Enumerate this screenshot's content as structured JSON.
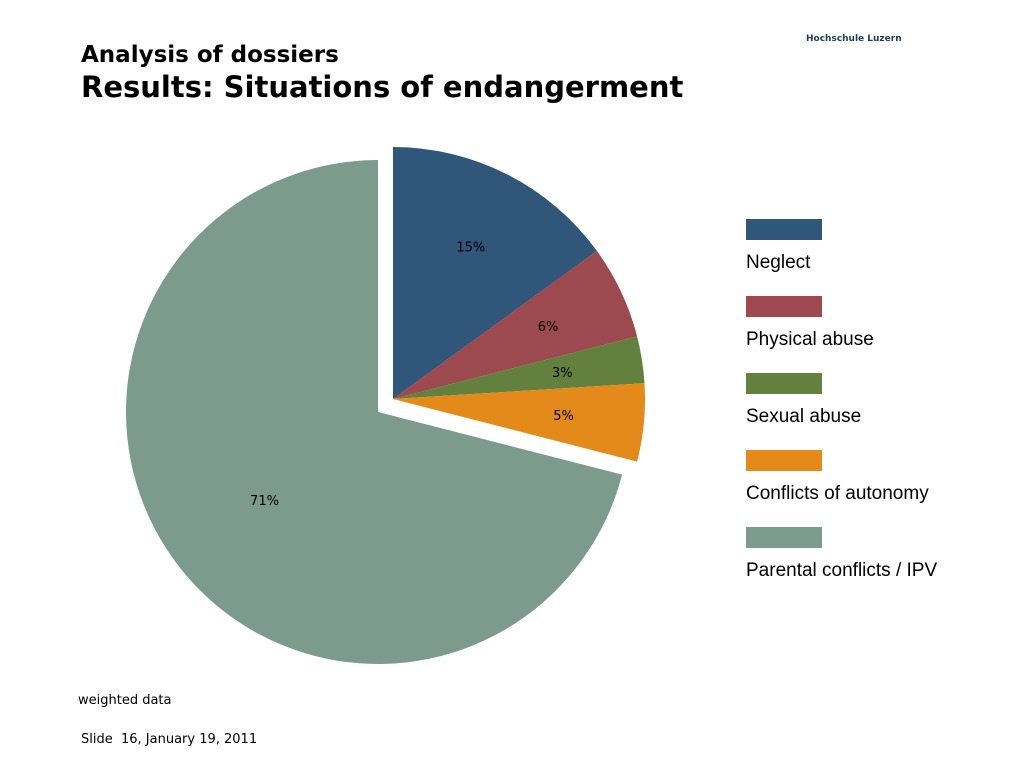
{
  "header": {
    "brand": "Hochschule Luzern",
    "title_line1": "Analysis of dossiers",
    "title_line2": "Results: Situations of endangerment"
  },
  "chart_data": {
    "type": "pie",
    "title": "",
    "categories": [
      "Neglect",
      "Physical abuse",
      "Sexual abuse",
      "Conflicts of autonomy",
      "Parental conflicts / IPV"
    ],
    "values": [
      15,
      6,
      3,
      5,
      71
    ],
    "labels": [
      "15%",
      "6%",
      "3%",
      "5%",
      "71%"
    ],
    "colors": [
      "#30567a",
      "#9c4a4f",
      "#64803f",
      "#e48a1a",
      "#7c9a8d"
    ],
    "legend_position": "right",
    "exploded": true
  },
  "footer": {
    "note": "weighted data",
    "slide_info": "Slide  16, January 19, 2011"
  }
}
